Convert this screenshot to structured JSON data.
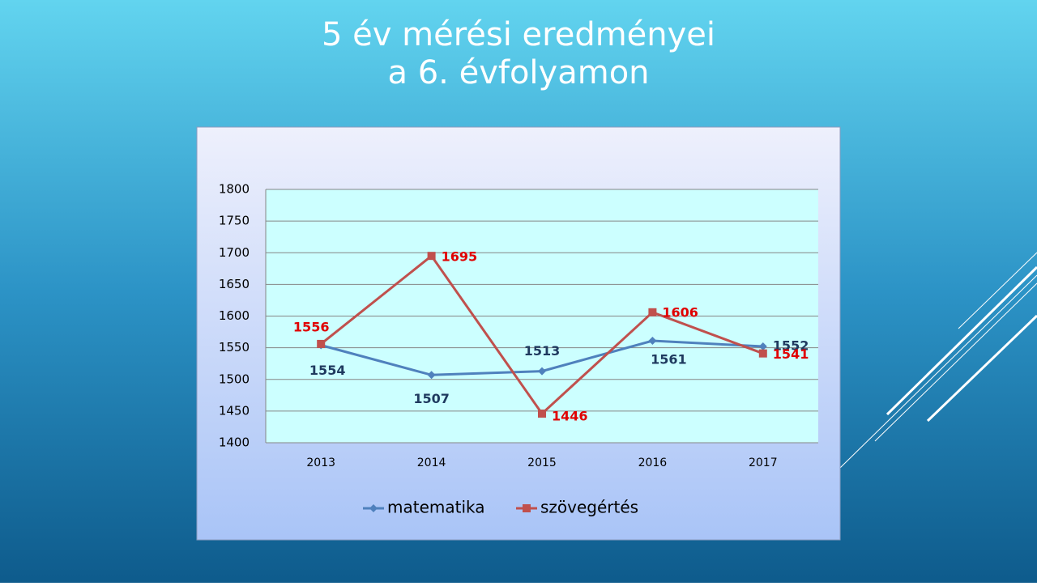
{
  "chart_data": {
    "type": "line",
    "title": [
      "5 év mérési eredményei",
      "a 6. évfolyamon"
    ],
    "categories": [
      "2013",
      "2014",
      "2015",
      "2016",
      "2017"
    ],
    "series": [
      {
        "name": "matematika",
        "color": "#4f81bd",
        "label_color": "#1f3a5f",
        "values": [
          1554,
          1507,
          1513,
          1561,
          1552
        ]
      },
      {
        "name": "szövegértés",
        "color": "#c0504d",
        "label_color": "#e00000",
        "values": [
          1556,
          1695,
          1446,
          1606,
          1541
        ]
      }
    ],
    "ylim": [
      1400,
      1800
    ],
    "yticks": [
      1400,
      1450,
      1500,
      1550,
      1600,
      1650,
      1700,
      1750,
      1800
    ],
    "grid": true,
    "legend": "bottom"
  }
}
